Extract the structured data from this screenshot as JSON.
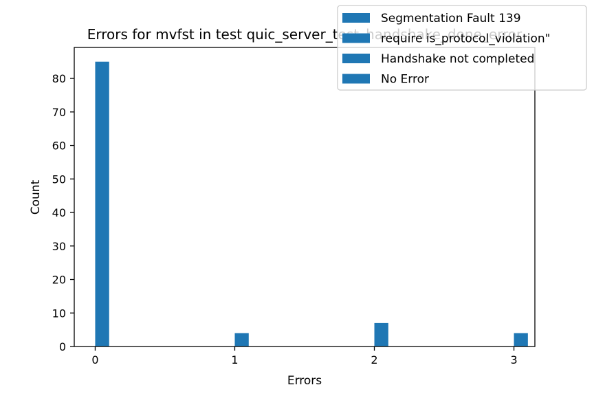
{
  "chart_data": {
    "type": "bar",
    "title": "Errors for mvfst in test quic_server_test_handshake_done_error",
    "xlabel": "Errors",
    "ylabel": "Count",
    "x": [
      0,
      1,
      2,
      3
    ],
    "values": [
      85,
      4,
      7,
      4
    ],
    "xlim": [
      -0.15,
      3.15
    ],
    "ylim": [
      0,
      89.25
    ],
    "xticks": [
      0,
      1,
      2,
      3
    ],
    "yticks": [
      0,
      10,
      20,
      30,
      40,
      50,
      60,
      70,
      80
    ],
    "bar_color": "#1f77b4",
    "grid": false,
    "legend": {
      "placement": "top-right",
      "entries": [
        "Segmentation Fault 139",
        "require is_protocol_violation\"",
        "Handshake not completed",
        "No Error"
      ]
    }
  }
}
